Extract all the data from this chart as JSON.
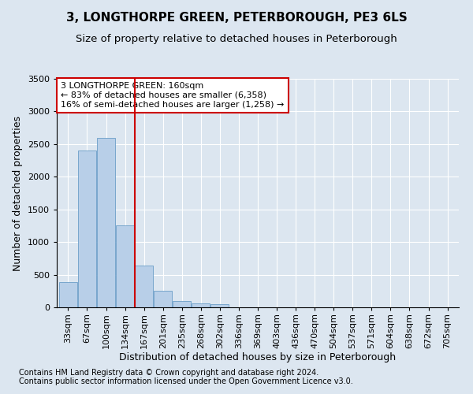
{
  "title": "3, LONGTHORPE GREEN, PETERBOROUGH, PE3 6LS",
  "subtitle": "Size of property relative to detached houses in Peterborough",
  "xlabel": "Distribution of detached houses by size in Peterborough",
  "ylabel": "Number of detached properties",
  "footer1": "Contains HM Land Registry data © Crown copyright and database right 2024.",
  "footer2": "Contains public sector information licensed under the Open Government Licence v3.0.",
  "annotation_line1": "3 LONGTHORPE GREEN: 160sqm",
  "annotation_line2": "← 83% of detached houses are smaller (6,358)",
  "annotation_line3": "16% of semi-detached houses are larger (1,258) →",
  "bar_categories": [
    "33sqm",
    "67sqm",
    "100sqm",
    "134sqm",
    "167sqm",
    "201sqm",
    "235sqm",
    "268sqm",
    "302sqm",
    "336sqm",
    "369sqm",
    "403sqm",
    "436sqm",
    "470sqm",
    "504sqm",
    "537sqm",
    "571sqm",
    "604sqm",
    "638sqm",
    "672sqm",
    "705sqm"
  ],
  "bar_values": [
    390,
    2400,
    2600,
    1250,
    640,
    250,
    100,
    55,
    50,
    0,
    0,
    0,
    0,
    0,
    0,
    0,
    0,
    0,
    0,
    0,
    0
  ],
  "bar_color": "#b8cfe8",
  "bar_edge_color": "#6b9ec8",
  "vline_color": "#cc0000",
  "ylim": [
    0,
    3500
  ],
  "yticks": [
    0,
    500,
    1000,
    1500,
    2000,
    2500,
    3000,
    3500
  ],
  "background_color": "#dce6f0",
  "plot_bg_color": "#dce6f0",
  "annotation_box_edge_color": "#cc0000",
  "title_fontsize": 11,
  "subtitle_fontsize": 9.5,
  "axis_label_fontsize": 9,
  "tick_fontsize": 8,
  "annotation_fontsize": 8,
  "footer_fontsize": 7
}
